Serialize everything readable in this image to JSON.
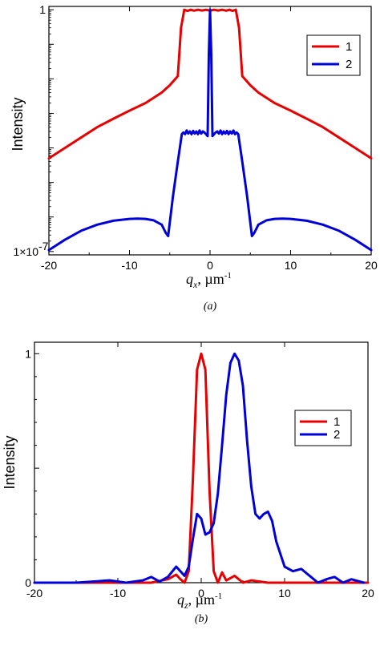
{
  "chart_data": [
    {
      "type": "line",
      "caption": "(a)",
      "xlabel": "q",
      "xlabel_sub": "x",
      "xlabel_unit": ",   µm",
      "xlabel_unit_sup": "-1",
      "ylabel": "Intensity",
      "log_y": true,
      "xlim": [
        -20,
        20
      ],
      "ylim": [
        8e-08,
        1.25
      ],
      "x_ticks": [
        -20,
        -10,
        0,
        10,
        20
      ],
      "x_tick_labels": [
        "-20",
        "-10",
        "0",
        "10",
        "20"
      ],
      "y_tick_labels": [
        {
          "value": 1,
          "text": "1"
        },
        {
          "value": 1e-07,
          "text": "1×10",
          "sup": "-7"
        }
      ],
      "legend": {
        "position": "top-right",
        "entries": [
          "1",
          "2"
        ]
      },
      "series": [
        {
          "name": "1",
          "color": "#e60000",
          "x": [
            -20,
            -18,
            -16,
            -14,
            -12,
            -10,
            -8,
            -6,
            -5,
            -4,
            -3.6,
            -3.2,
            -2.8,
            -2.4,
            -2,
            -1.5,
            -1,
            -0.5,
            0,
            0.5,
            1,
            1.5,
            2,
            2.4,
            2.8,
            3.2,
            3.6,
            4,
            5,
            6,
            8,
            10,
            12,
            14,
            16,
            18,
            20
          ],
          "y": [
            5e-05,
            0.0001,
            0.0002,
            0.0004,
            0.0007,
            0.0012,
            0.002,
            0.004,
            0.0065,
            0.012,
            0.3,
            1,
            0.93,
            1,
            0.94,
            1,
            0.95,
            1,
            0.94,
            1,
            0.95,
            1,
            0.94,
            1,
            0.93,
            1,
            0.3,
            0.012,
            0.0065,
            0.004,
            0.002,
            0.0012,
            0.0007,
            0.0004,
            0.0002,
            0.0001,
            5e-05
          ]
        },
        {
          "name": "2",
          "color": "#0000d8",
          "x": [
            -20,
            -18,
            -16,
            -14,
            -12,
            -10,
            -9,
            -8,
            -7,
            -6,
            -5.5,
            -5.2,
            -4.6,
            -4.0,
            -3.5,
            -3.3,
            -3.1,
            -2.9,
            -2.7,
            -2.5,
            -2.3,
            -2.1,
            -1.9,
            -1.7,
            -1.5,
            -1.3,
            -1.1,
            -0.9,
            -0.7,
            -0.5,
            -0.3,
            -0.15,
            0,
            0.15,
            0.3,
            0.5,
            0.7,
            0.9,
            1.1,
            1.3,
            1.5,
            1.7,
            1.9,
            2.1,
            2.3,
            2.5,
            2.7,
            2.9,
            3.1,
            3.3,
            3.5,
            4.0,
            4.6,
            5.2,
            5.5,
            6,
            7,
            8,
            9,
            10,
            12,
            14,
            16,
            18,
            20
          ],
          "y": [
            1.1e-07,
            2.2e-07,
            4e-07,
            6e-07,
            7.8e-07,
            8.8e-07,
            9e-07,
            8.8e-07,
            8e-07,
            6e-07,
            3.5e-07,
            2.8e-07,
            4e-06,
            4e-05,
            0.00025,
            0.00028,
            0.00025,
            0.00032,
            0.00026,
            0.0003,
            0.00025,
            0.00031,
            0.00026,
            0.0003,
            0.00025,
            0.00032,
            0.00026,
            0.0003,
            0.00028,
            0.00025,
            0.00022,
            0.05,
            1,
            0.05,
            0.00022,
            0.00025,
            0.00028,
            0.0003,
            0.00026,
            0.00032,
            0.00025,
            0.0003,
            0.00026,
            0.00031,
            0.00025,
            0.0003,
            0.00026,
            0.00032,
            0.00025,
            0.00028,
            0.00025,
            4e-05,
            4e-06,
            2.8e-07,
            3.5e-07,
            6e-07,
            8e-07,
            8.8e-07,
            9e-07,
            8.8e-07,
            7.8e-07,
            6e-07,
            4e-07,
            2.2e-07,
            1.1e-07
          ]
        }
      ]
    },
    {
      "type": "line",
      "caption": "(b)",
      "xlabel": "q",
      "xlabel_sub": "z",
      "xlabel_unit": ",  µm",
      "xlabel_unit_sup": "-1",
      "ylabel": "Intensity",
      "log_y": false,
      "xlim": [
        -20,
        20
      ],
      "ylim": [
        0,
        1.05
      ],
      "x_ticks": [
        -20,
        -10,
        0,
        10,
        20
      ],
      "x_tick_labels": [
        "-20",
        "-10",
        "0",
        "10",
        "20"
      ],
      "y_tick_labels": [
        {
          "value": 0,
          "text": "0"
        },
        {
          "value": 1,
          "text": "1"
        }
      ],
      "legend": {
        "position": "right",
        "entries": [
          "1",
          "2"
        ]
      },
      "series": [
        {
          "name": "1",
          "color": "#e60000",
          "x": [
            -20,
            -6,
            -4,
            -3,
            -2.5,
            -2,
            -1.5,
            -1,
            -0.5,
            0,
            0.5,
            1,
            1.5,
            2,
            2.5,
            3,
            4,
            5,
            6,
            8,
            20
          ],
          "y": [
            0,
            0,
            0.015,
            0.035,
            0.015,
            0,
            0.05,
            0.45,
            0.93,
            1,
            0.93,
            0.4,
            0.05,
            0,
            0.045,
            0.01,
            0.03,
            0,
            0.01,
            0,
            0
          ]
        },
        {
          "name": "2",
          "color": "#0000d8",
          "x": [
            -20,
            -15,
            -13,
            -11,
            -9,
            -7,
            -6,
            -5,
            -4,
            -3,
            -2,
            -1.5,
            -1,
            -0.5,
            0,
            0.5,
            1,
            1.5,
            2,
            2.5,
            3,
            3.5,
            4,
            4.5,
            5,
            5.5,
            6,
            6.5,
            7,
            7.5,
            8,
            8.5,
            9,
            10,
            11,
            12,
            13,
            14,
            15,
            16,
            17,
            18,
            19.5
          ],
          "y": [
            0,
            0,
            0.005,
            0.01,
            0,
            0.01,
            0.025,
            0.005,
            0.025,
            0.07,
            0.03,
            0.07,
            0.19,
            0.3,
            0.28,
            0.21,
            0.22,
            0.26,
            0.39,
            0.6,
            0.82,
            0.96,
            1,
            0.97,
            0.86,
            0.62,
            0.42,
            0.3,
            0.28,
            0.3,
            0.31,
            0.27,
            0.18,
            0.07,
            0.05,
            0.06,
            0.03,
            0,
            0.015,
            0.025,
            0,
            0.015,
            0
          ]
        }
      ]
    }
  ]
}
